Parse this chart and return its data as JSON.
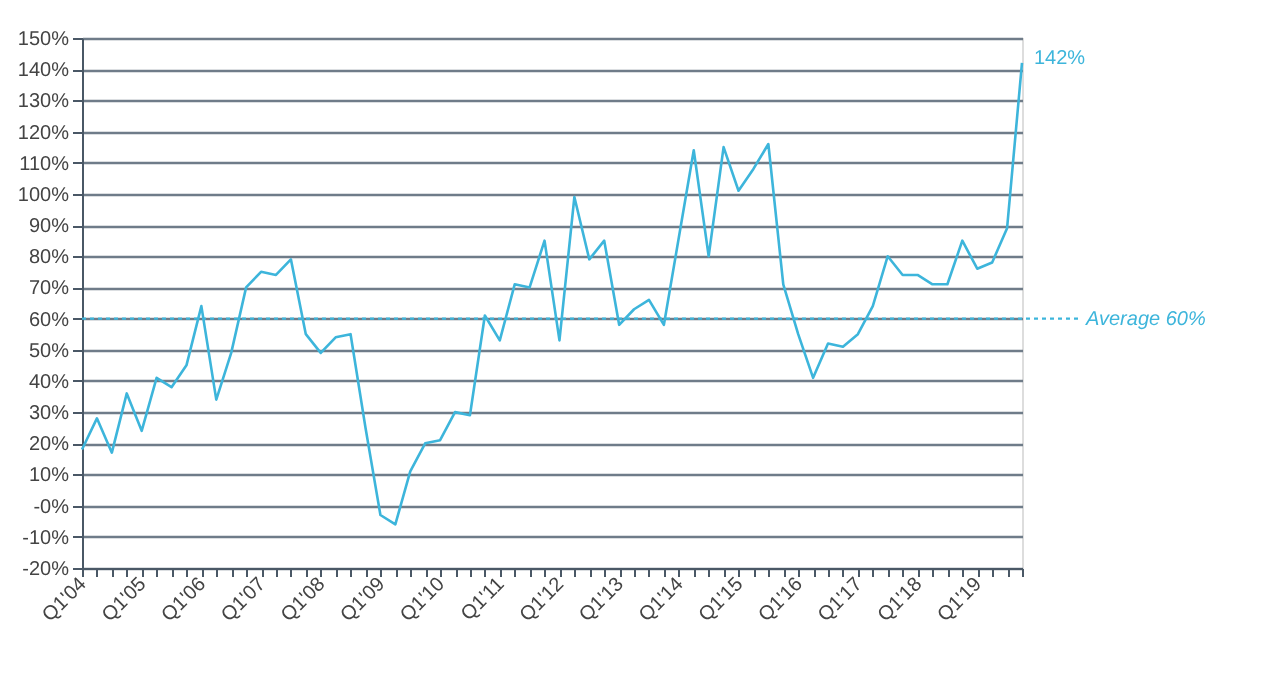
{
  "chart_data": {
    "type": "line",
    "categories": [
      "Q1'04",
      null,
      null,
      null,
      "Q1'05",
      null,
      null,
      null,
      "Q1'06",
      null,
      null,
      null,
      "Q1'07",
      null,
      null,
      null,
      "Q1'08",
      null,
      null,
      null,
      "Q1'09",
      null,
      null,
      null,
      "Q1'10",
      null,
      null,
      null,
      "Q1'11",
      null,
      null,
      null,
      "Q1'12",
      null,
      null,
      null,
      "Q1'13",
      null,
      null,
      null,
      "Q1'14",
      null,
      null,
      null,
      "Q1'15",
      null,
      null,
      null,
      "Q1'16",
      null,
      null,
      null,
      "Q1'17",
      null,
      null,
      null,
      "Q1'18",
      null,
      null,
      null,
      "Q1'19",
      null,
      null,
      null
    ],
    "series": [
      {
        "color": "#3db5db",
        "values": [
          18,
          28,
          17,
          36,
          24,
          41,
          38,
          45,
          64,
          34,
          49,
          70,
          75,
          74,
          79,
          55,
          49,
          54,
          55,
          25,
          -3,
          -6,
          11,
          20,
          21,
          30,
          29,
          61,
          53,
          71,
          70,
          85,
          53,
          99,
          79,
          85,
          58,
          63,
          66,
          58,
          86,
          114,
          80,
          115,
          101,
          108,
          116,
          71,
          55,
          41,
          52,
          51,
          55,
          64,
          80,
          74,
          74,
          71,
          71,
          85,
          76,
          78,
          89,
          142
        ]
      }
    ],
    "ylim": [
      -20,
      150
    ],
    "yticks": [
      {
        "value": -20,
        "label": "-20%"
      },
      {
        "value": -10,
        "label": "-10%"
      },
      {
        "value": 0,
        "label": "-0%"
      },
      {
        "value": 10,
        "label": "10%"
      },
      {
        "value": 20,
        "label": "20%"
      },
      {
        "value": 30,
        "label": "30%"
      },
      {
        "value": 40,
        "label": "40%"
      },
      {
        "value": 50,
        "label": "50%"
      },
      {
        "value": 60,
        "label": "60%"
      },
      {
        "value": 70,
        "label": "70%"
      },
      {
        "value": 80,
        "label": "80%"
      },
      {
        "value": 90,
        "label": "90%"
      },
      {
        "value": 100,
        "label": "100%"
      },
      {
        "value": 110,
        "label": "110%"
      },
      {
        "value": 120,
        "label": "120%"
      },
      {
        "value": 130,
        "label": "130%"
      },
      {
        "value": 140,
        "label": "140%"
      },
      {
        "value": 150,
        "label": "150%"
      }
    ],
    "grid": "y",
    "marker": "none",
    "line_style": "solid",
    "ref_lines": [
      {
        "axis": "y",
        "value": 60,
        "label": "Average 60%",
        "color": "#3db5db",
        "line_style": "dotted"
      }
    ],
    "annotations": [
      "142%"
    ]
  }
}
